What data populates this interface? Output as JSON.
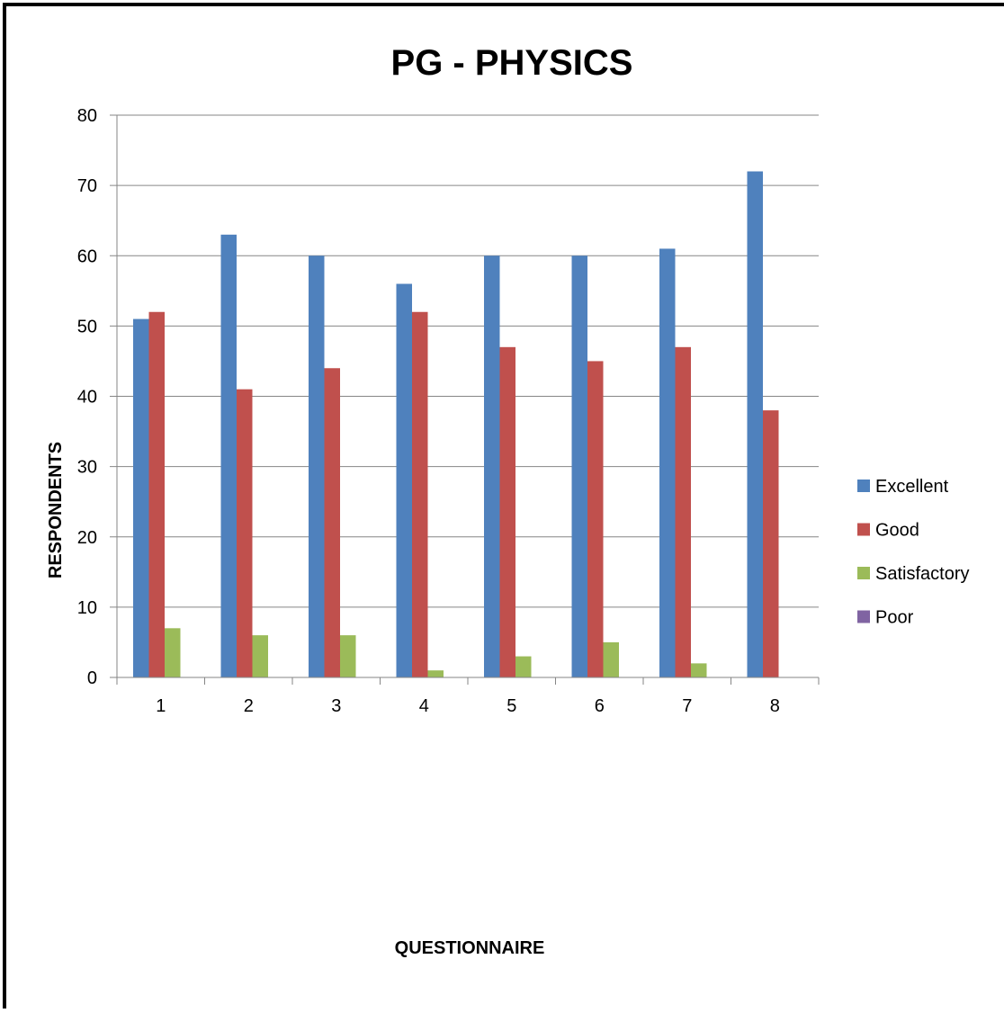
{
  "chart_data": {
    "type": "bar",
    "title": "PG - PHYSICS",
    "xlabel": "QUESTIONNAIRE",
    "ylabel": "RESPONDENTS",
    "categories": [
      "1",
      "2",
      "3",
      "4",
      "5",
      "6",
      "7",
      "8"
    ],
    "ylim": [
      0,
      80
    ],
    "yticks": [
      0,
      10,
      20,
      30,
      40,
      50,
      60,
      70,
      80
    ],
    "grid": true,
    "legend_position": "right",
    "series": [
      {
        "name": "Excellent",
        "color": "#4F81BD",
        "values": [
          51,
          63,
          60,
          56,
          60,
          60,
          61,
          72
        ]
      },
      {
        "name": "Good",
        "color": "#C0504D",
        "values": [
          52,
          41,
          44,
          52,
          47,
          45,
          47,
          38
        ]
      },
      {
        "name": "Satisfactory",
        "color": "#9BBB59",
        "values": [
          7,
          6,
          6,
          1,
          3,
          5,
          2,
          0
        ]
      },
      {
        "name": "Poor",
        "color": "#8064A2",
        "values": [
          0,
          0,
          0,
          0,
          0,
          0,
          0,
          0
        ]
      }
    ]
  }
}
